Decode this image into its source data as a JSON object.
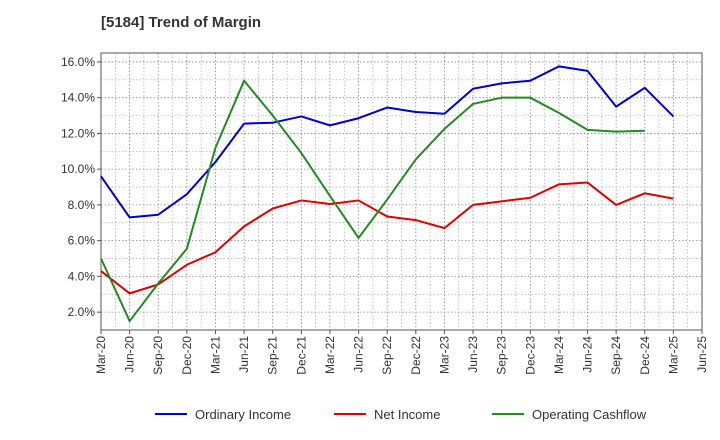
{
  "chart_data": {
    "type": "line",
    "title": "[5184]  Trend of Margin",
    "xlabel": "",
    "ylabel": "",
    "x": [
      "Mar-20",
      "Jun-20",
      "Sep-20",
      "Dec-20",
      "Mar-21",
      "Jun-21",
      "Sep-21",
      "Dec-21",
      "Mar-22",
      "Jun-22",
      "Sep-22",
      "Dec-22",
      "Mar-23",
      "Jun-23",
      "Sep-23",
      "Dec-23",
      "Mar-24",
      "Jun-24",
      "Sep-24",
      "Dec-24",
      "Mar-25",
      "Jun-25"
    ],
    "x_tick_labels": [
      "Mar-20",
      "Jun-20",
      "Sep-20",
      "Dec-20",
      "Mar-21",
      "Jun-21",
      "Sep-21",
      "Dec-21",
      "Mar-22",
      "Jun-22",
      "Sep-22",
      "Dec-22",
      "Mar-23",
      "Jun-23",
      "Sep-23",
      "Dec-23",
      "Mar-24",
      "Jun-24",
      "Sep-24",
      "Dec-24",
      "Mar-25",
      "Jun-25"
    ],
    "ylim": [
      1.0,
      16.5
    ],
    "y_ticks": [
      2.0,
      4.0,
      6.0,
      8.0,
      10.0,
      12.0,
      14.0,
      16.0
    ],
    "y_tick_labels": [
      "2.0%",
      "4.0%",
      "6.0%",
      "8.0%",
      "10.0%",
      "12.0%",
      "14.0%",
      "16.0%"
    ],
    "grid": true,
    "legend_position": "bottom",
    "series": [
      {
        "name": "Ordinary Income",
        "color": "#0000cc",
        "values": [
          9.6,
          7.3,
          7.45,
          8.6,
          10.4,
          12.55,
          12.6,
          12.95,
          12.45,
          12.85,
          13.45,
          13.2,
          13.1,
          14.5,
          14.8,
          14.95,
          15.75,
          15.5,
          13.5,
          14.55,
          12.95,
          null
        ]
      },
      {
        "name": "Net Income",
        "color": "#dd0000",
        "values": [
          4.3,
          3.05,
          3.55,
          4.65,
          5.35,
          6.8,
          7.8,
          8.25,
          8.05,
          8.25,
          7.35,
          7.15,
          6.7,
          8.0,
          8.2,
          8.4,
          9.15,
          9.25,
          8.0,
          8.65,
          8.35,
          null
        ]
      },
      {
        "name": "Operating Cashflow",
        "color": "#228b22",
        "values": [
          5.0,
          1.5,
          3.6,
          5.55,
          11.2,
          14.95,
          13.0,
          10.9,
          8.5,
          6.15,
          8.3,
          10.55,
          12.25,
          13.65,
          14.0,
          14.0,
          13.15,
          12.2,
          12.1,
          12.15,
          null,
          null
        ]
      }
    ]
  }
}
